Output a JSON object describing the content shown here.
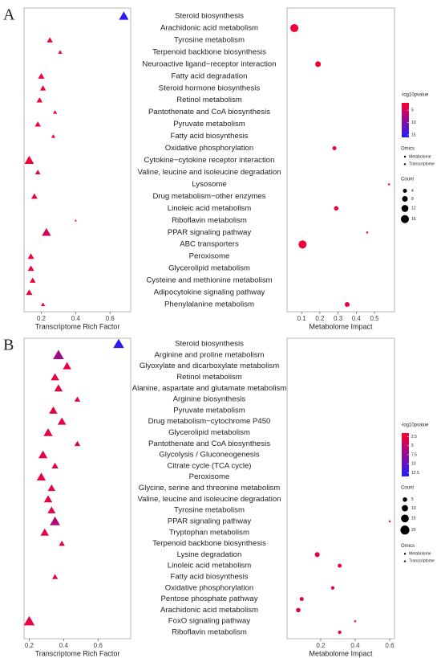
{
  "chart_data": [
    {
      "type": "dot_matrix",
      "panel_label": "A",
      "categories": [
        "Steroid biosynthesis",
        "Arachidonic acid metabolism",
        "Tyrosine metabolism",
        "Terpenoid backbone biosynthesis",
        "Neuroactive ligand−receptor interaction",
        "Fatty acid degradation",
        "Steroid hormone biosynthesis",
        "Retinol metabolism",
        "Pantothenate and CoA biosynthesis",
        "Pyruvate metabolism",
        "Fatty acid biosynthesis",
        "Oxidative phosphorylation",
        "Cytokine−cytokine receptor interaction",
        "Valine, leucine and isoleucine degradation",
        "Lysosome",
        "Drug metabolism−other enzymes",
        "Linoleic acid metabolism",
        "Riboflavin metabolism",
        "PPAR signaling pathway",
        "ABC transporters",
        "Peroxisome",
        "Glycerolipid metabolism",
        "Cysteine and methionine metabolism",
        "Adipocytokine signaling pathway",
        "Phenylalanine metabolism"
      ],
      "transcriptome": {
        "xlabel": "Transcriptome Rich Factor",
        "xlim": [
          0.1,
          0.72
        ],
        "xticks": [
          0.2,
          0.4,
          0.6
        ],
        "values": [
          0.68,
          null,
          0.25,
          0.31,
          null,
          0.2,
          0.21,
          0.19,
          0.28,
          0.18,
          0.27,
          null,
          0.13,
          0.18,
          null,
          0.16,
          null,
          0.4,
          0.23,
          null,
          0.14,
          0.14,
          0.15,
          0.13,
          0.21
        ],
        "count": [
          16,
          null,
          6,
          3,
          null,
          7,
          6,
          6,
          3,
          6,
          3,
          null,
          15,
          5,
          null,
          7,
          null,
          1,
          14,
          null,
          7,
          7,
          6,
          7,
          3
        ],
        "neglog10p": [
          15,
          null,
          3,
          3,
          null,
          3,
          3,
          3,
          3,
          3,
          3,
          null,
          3,
          3,
          null,
          3,
          null,
          2,
          5,
          null,
          3,
          3,
          3,
          3,
          3
        ]
      },
      "metabolome": {
        "xlabel": "Metabolome Impact",
        "xlim": [
          0.02,
          0.61
        ],
        "xticks": [
          0.1,
          0.2,
          0.3,
          0.4,
          0.5
        ],
        "values": [
          null,
          0.06,
          null,
          null,
          0.19,
          null,
          null,
          null,
          null,
          null,
          null,
          0.28,
          null,
          null,
          0.58,
          null,
          0.29,
          null,
          0.46,
          0.105,
          null,
          null,
          null,
          null,
          0.35
        ],
        "count": [
          null,
          16,
          null,
          null,
          8,
          null,
          null,
          null,
          null,
          null,
          null,
          4,
          null,
          null,
          1,
          null,
          5,
          null,
          1,
          16,
          null,
          null,
          null,
          null,
          6
        ],
        "neglog10p": [
          null,
          3,
          null,
          null,
          3,
          null,
          null,
          null,
          null,
          null,
          null,
          3,
          null,
          null,
          2,
          null,
          3,
          null,
          2,
          3,
          null,
          null,
          null,
          null,
          3
        ]
      },
      "legends": [
        {
          "kind": "colorbar",
          "title": "-log10pvalue",
          "ticks": [
            5,
            10,
            15
          ],
          "clim": [
            2,
            16
          ]
        },
        {
          "kind": "shape",
          "title": "Omics",
          "items": [
            "Metabolome",
            "Transcriptome"
          ]
        },
        {
          "kind": "size",
          "title": "Count",
          "ticks": [
            4,
            8,
            12,
            16
          ]
        }
      ]
    },
    {
      "type": "dot_matrix",
      "panel_label": "B",
      "categories": [
        "Steroid biosynthesis",
        "Arginine and proline metabolism",
        "Glyoxylate and dicarboxylate metabolism",
        "Retinol metabolism",
        "Alanine, aspartate and glutamate metabolism",
        "Arginine biosynthesis",
        "Pyruvate metabolism",
        "Drug metabolism−cytochrome P450",
        "Glycerolipid metabolism",
        "Pantothenate and CoA biosynthesis",
        "Glycolysis / Gluconeogenesis",
        "Citrate cycle (TCA cycle)",
        "Peroxisome",
        "Glycine, serine and threonine metabolism",
        "Valine, leucine and isoleucine degradation",
        "Tyrosine metabolism",
        "PPAR signaling pathway",
        "Tryptophan metabolism",
        "Terpenoid backbone biosynthesis",
        "Lysine degradation",
        "Linoleic acid metabolism",
        "Fatty acid biosynthesis",
        "Oxidative phosphorylation",
        "Pentose phosphate pathway",
        "Arachidonic acid metabolism",
        "FoxO signaling pathway",
        "Riboflavin metabolism"
      ],
      "transcriptome": {
        "xlabel": "Transcriptome Rich Factor",
        "xlim": [
          0.17,
          0.79
        ],
        "xticks": [
          0.2,
          0.4,
          0.6
        ],
        "values": [
          0.72,
          0.37,
          0.42,
          0.35,
          0.37,
          0.48,
          0.34,
          0.39,
          0.31,
          0.48,
          0.28,
          0.35,
          0.27,
          0.33,
          0.31,
          0.33,
          0.35,
          0.29,
          0.39,
          null,
          null,
          0.35,
          null,
          null,
          null,
          0.2,
          null
        ],
        "count": [
          20,
          20,
          12,
          12,
          12,
          6,
          12,
          12,
          14,
          6,
          14,
          8,
          14,
          10,
          12,
          11,
          18,
          12,
          6,
          null,
          null,
          6,
          null,
          null,
          null,
          20,
          null
        ],
        "neglog10p": [
          12.5,
          7,
          3,
          3,
          3,
          3,
          3,
          3,
          3,
          3,
          3,
          3,
          3,
          3,
          3,
          3,
          6,
          3,
          3,
          null,
          null,
          3,
          null,
          null,
          null,
          3,
          null
        ]
      },
      "metabolome": {
        "xlabel": "Metabolome Impact",
        "xlim": [
          0.005,
          0.628
        ],
        "xticks": [
          0.2,
          0.4,
          0.6
        ],
        "values": [
          null,
          null,
          null,
          null,
          null,
          null,
          null,
          null,
          null,
          null,
          null,
          null,
          null,
          null,
          null,
          null,
          0.6,
          null,
          null,
          0.18,
          0.31,
          null,
          0.27,
          0.09,
          0.07,
          0.4,
          0.31
        ],
        "count": [
          null,
          null,
          null,
          null,
          null,
          null,
          null,
          null,
          null,
          null,
          null,
          null,
          null,
          null,
          null,
          null,
          1,
          null,
          null,
          6,
          4,
          null,
          3,
          4,
          5,
          1,
          3
        ],
        "neglog10p": [
          null,
          null,
          null,
          null,
          null,
          null,
          null,
          null,
          null,
          null,
          null,
          null,
          null,
          null,
          null,
          null,
          2,
          null,
          null,
          3,
          3,
          null,
          3,
          3,
          3,
          2,
          3
        ]
      },
      "legends": [
        {
          "kind": "colorbar",
          "title": "-log10pvalue",
          "ticks": [
            2.5,
            5,
            7.5,
            10,
            12.5
          ],
          "clim": [
            1.5,
            13.5
          ]
        },
        {
          "kind": "size",
          "title": "Count",
          "ticks": [
            5,
            10,
            15,
            20
          ]
        },
        {
          "kind": "shape",
          "title": "Omics",
          "items": [
            "Metabolome",
            "Transcriptome"
          ]
        }
      ]
    }
  ]
}
